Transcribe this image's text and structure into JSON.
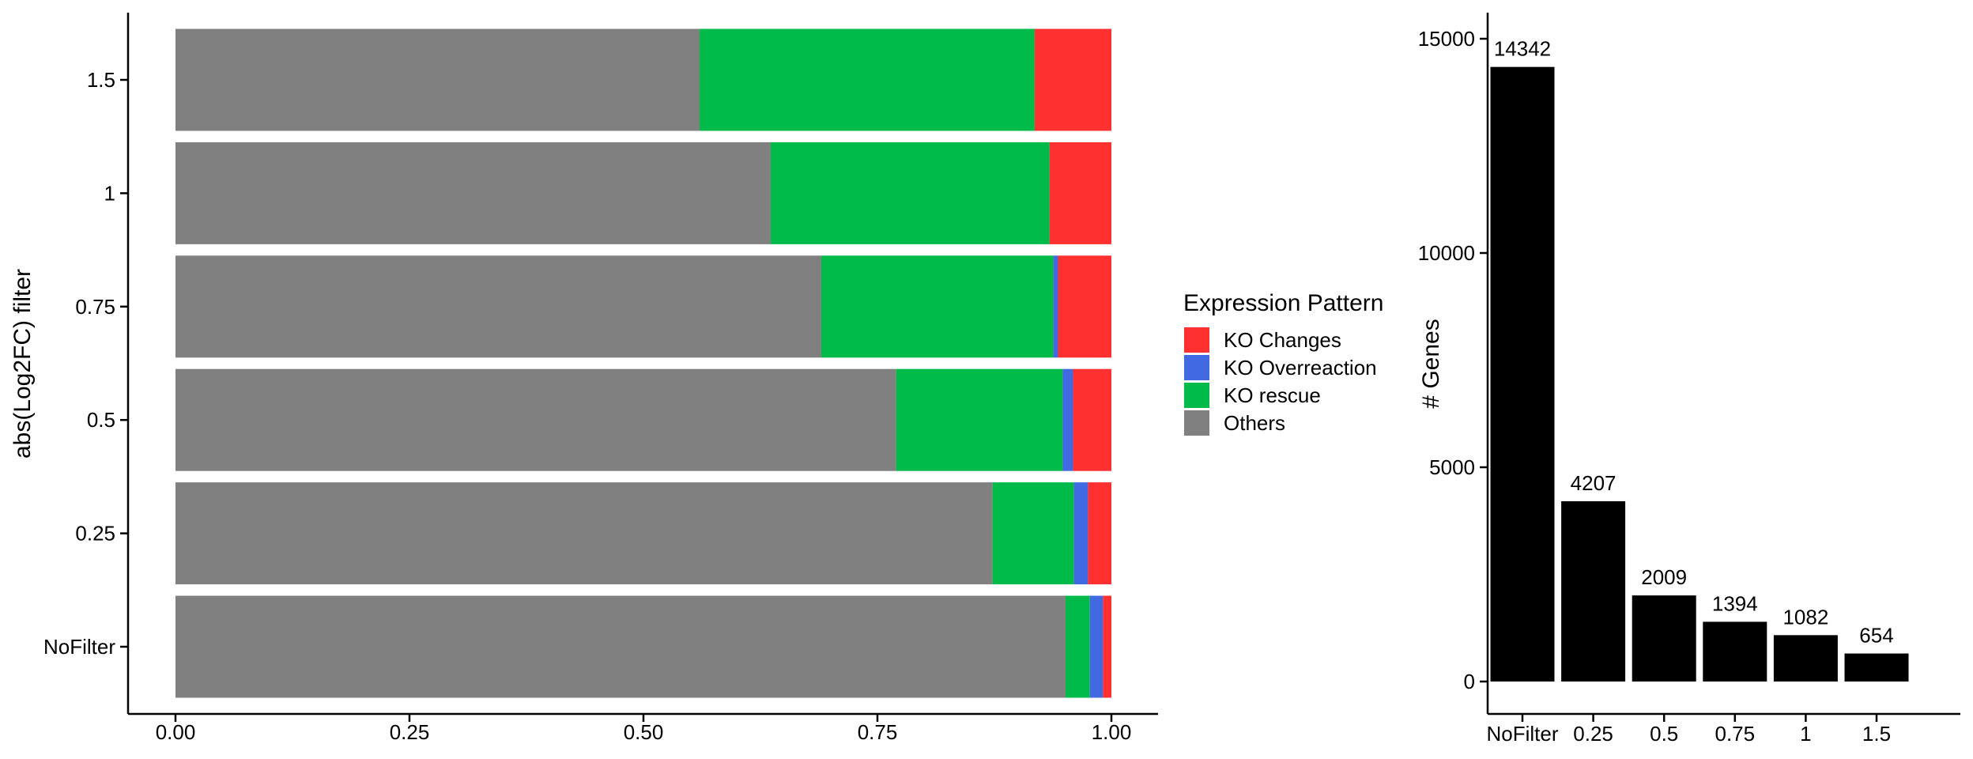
{
  "chart_data": [
    {
      "type": "bar",
      "orientation": "horizontal",
      "stacked": "proportion",
      "ylabel": "abs(Log2FC) filter",
      "xlabel": "",
      "categories": [
        "NoFilter",
        "0.25",
        "0.5",
        "0.75",
        "1",
        "1.5"
      ],
      "xlim": [
        0,
        1
      ],
      "xticks": [
        "0.00",
        "0.25",
        "0.50",
        "0.75",
        "1.00"
      ],
      "legend": {
        "title": "Expression Pattern",
        "placement": "right",
        "entries": [
          "KO Changes",
          "KO Overreaction",
          "KO rescue",
          "Others"
        ]
      },
      "series": [
        {
          "name": "Others",
          "color": "#808080",
          "values": [
            0.951,
            0.873,
            0.77,
            0.69,
            0.636,
            0.56
          ]
        },
        {
          "name": "KO rescue",
          "color": "#00BA4A",
          "values": [
            0.026,
            0.087,
            0.178,
            0.248,
            0.298,
            0.358
          ]
        },
        {
          "name": "KO Overreaction",
          "color": "#4169E1",
          "values": [
            0.014,
            0.015,
            0.011,
            0.005,
            0.0,
            0.0
          ]
        },
        {
          "name": "KO Changes",
          "color": "#FF3030",
          "values": [
            0.009,
            0.025,
            0.041,
            0.057,
            0.066,
            0.082
          ]
        }
      ],
      "grid": false
    },
    {
      "type": "bar",
      "orientation": "vertical",
      "ylabel": "# Genes",
      "xlabel": "",
      "categories": [
        "NoFilter",
        "0.25",
        "0.5",
        "0.75",
        "1",
        "1.5"
      ],
      "values": [
        14342,
        4207,
        2009,
        1394,
        1082,
        654
      ],
      "data_labels": [
        "14342",
        "4207",
        "2009",
        "1394",
        "1082",
        "654"
      ],
      "ylim": [
        0,
        15000
      ],
      "yticks": [
        "0",
        "5000",
        "10000",
        "15000"
      ],
      "color": "#000000",
      "grid": false
    }
  ]
}
